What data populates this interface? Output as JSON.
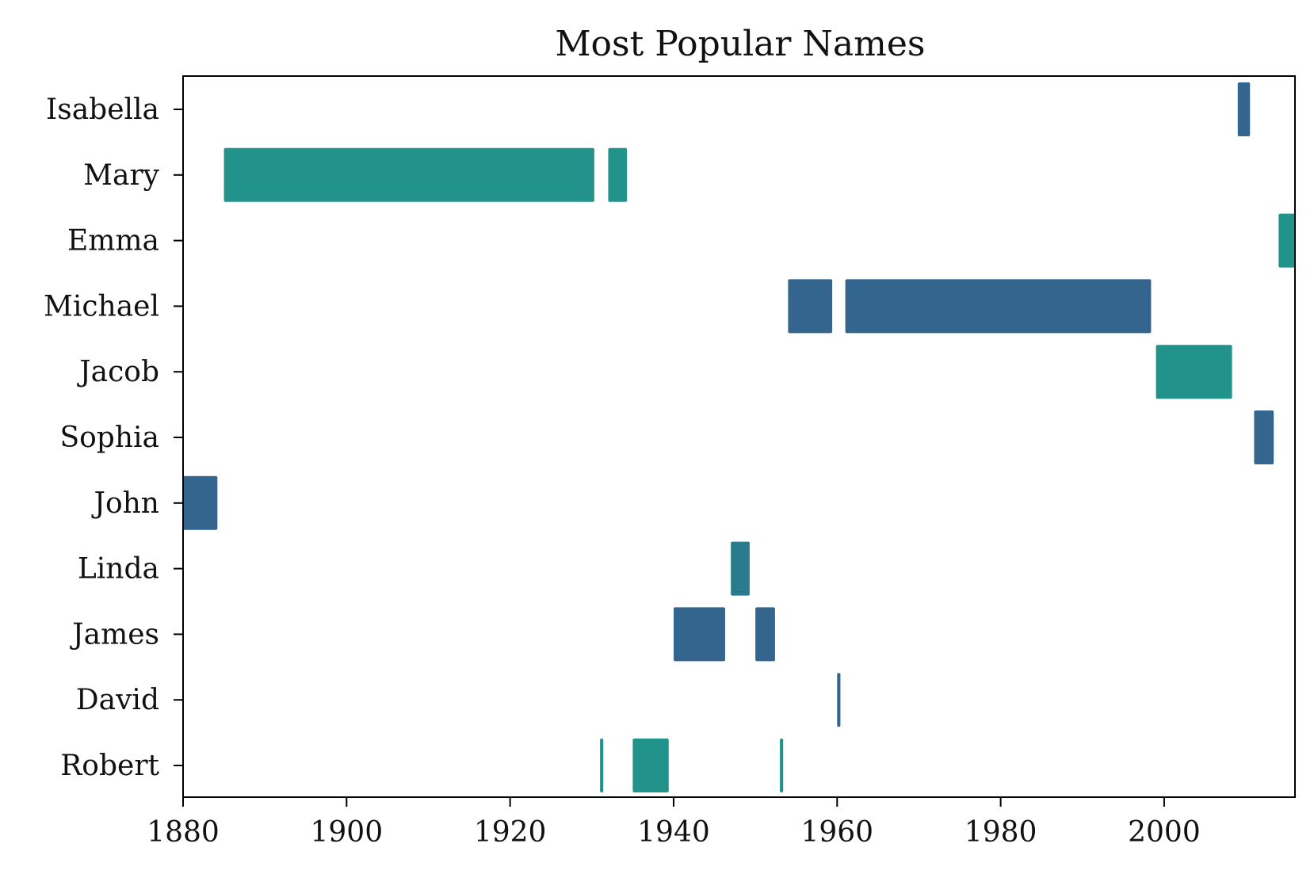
{
  "chart_data": {
    "type": "bar",
    "orientation": "horizontal-ranges",
    "title": "Most Popular Names",
    "xlabel": "",
    "ylabel": "",
    "xlim": [
      1880,
      2016
    ],
    "x_ticks": [
      1880,
      1900,
      1920,
      1940,
      1960,
      1980,
      2000
    ],
    "grid": false,
    "colors": {
      "teal": "#21938a",
      "blue": "#33658f",
      "mid": "#2b7b8f"
    },
    "series": [
      {
        "name": "Isabella",
        "color": "#33658f",
        "ranges": [
          [
            2009,
            2010.5
          ]
        ]
      },
      {
        "name": "Mary",
        "color": "#21938a",
        "ranges": [
          [
            1885,
            1930.3
          ],
          [
            1932,
            1934.3
          ]
        ]
      },
      {
        "name": "Emma",
        "color": "#21938a",
        "ranges": [
          [
            2014,
            2016
          ]
        ]
      },
      {
        "name": "Michael",
        "color": "#33658f",
        "ranges": [
          [
            1954,
            1959.4
          ],
          [
            1961,
            1998.4
          ]
        ]
      },
      {
        "name": "Jacob",
        "color": "#21938a",
        "ranges": [
          [
            1999,
            2008.3
          ]
        ]
      },
      {
        "name": "Sophia",
        "color": "#33658f",
        "ranges": [
          [
            2011,
            2013.4
          ]
        ]
      },
      {
        "name": "John",
        "color": "#33658f",
        "ranges": [
          [
            1880,
            1884.2
          ]
        ]
      },
      {
        "name": "Linda",
        "color": "#2b7b8f",
        "ranges": [
          [
            1947,
            1949.3
          ]
        ]
      },
      {
        "name": "James",
        "color": "#33658f",
        "ranges": [
          [
            1940,
            1946.3
          ],
          [
            1950,
            1952.4
          ]
        ]
      },
      {
        "name": "David",
        "color": "#33658f",
        "ranges": [
          [
            1960,
            1960.4
          ]
        ]
      },
      {
        "name": "Robert",
        "color": "#21938a",
        "ranges": [
          [
            1931,
            1931.4
          ],
          [
            1935,
            1939.4
          ],
          [
            1953,
            1953.4
          ]
        ]
      }
    ]
  }
}
